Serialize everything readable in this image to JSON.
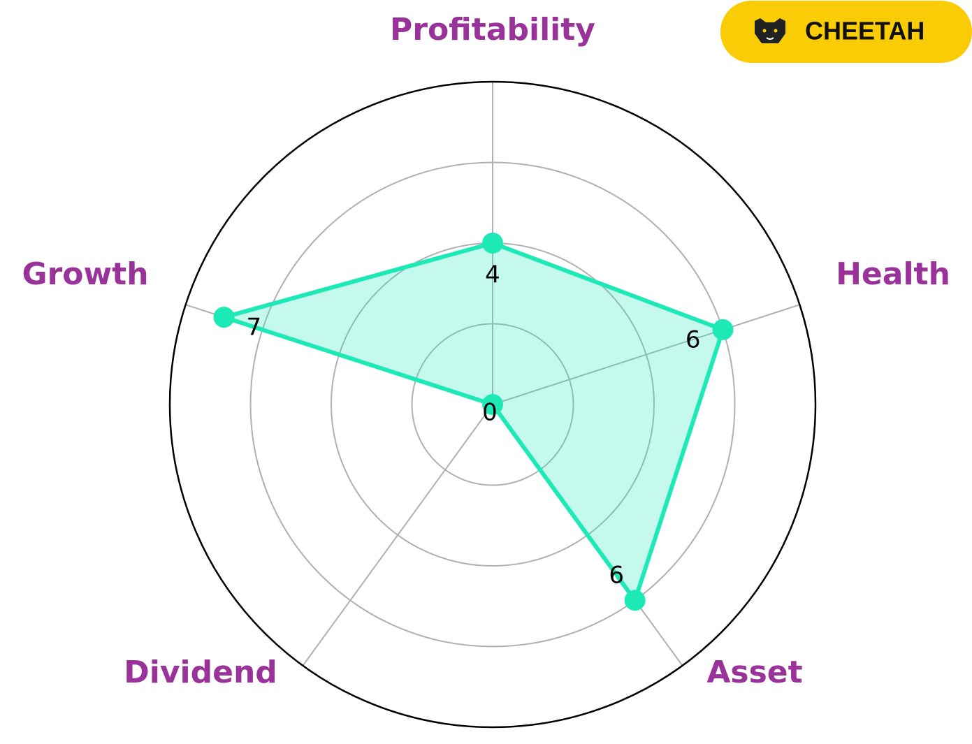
{
  "chart_data": {
    "type": "radar",
    "categories": [
      "Profitability",
      "Health",
      "Asset",
      "Dividend",
      "Growth"
    ],
    "values": [
      4,
      6,
      6,
      0,
      7
    ],
    "color": "#1de9b6",
    "label_color": "#993399",
    "rlim": [
      0,
      8
    ],
    "rticks": [
      2,
      4,
      6,
      8
    ],
    "grid": true,
    "badge": "CHEETAH"
  }
}
